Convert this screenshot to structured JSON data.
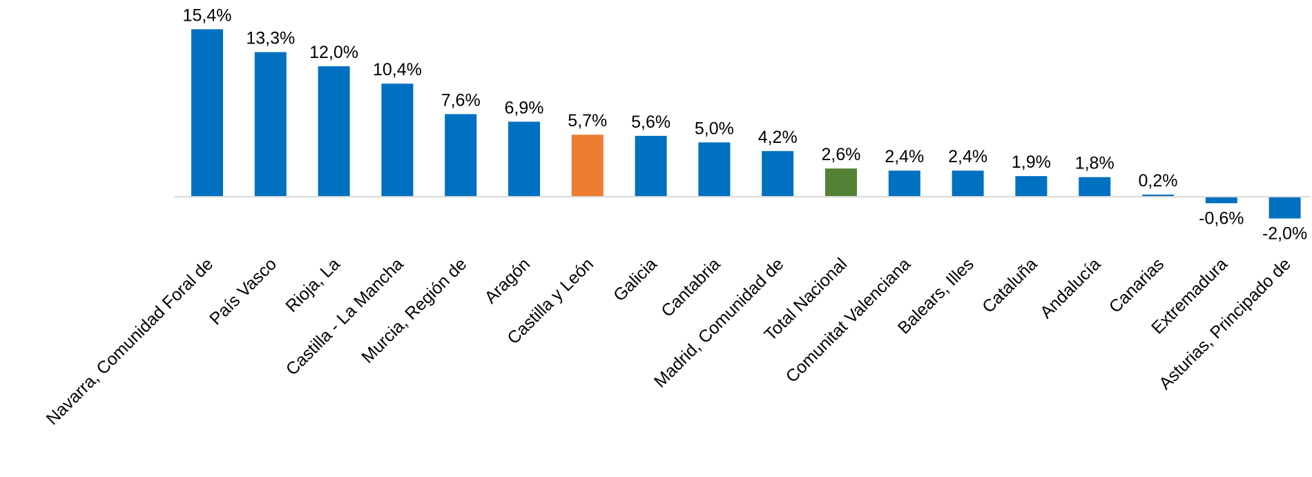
{
  "chart_data": {
    "type": "bar",
    "title": "",
    "xlabel": "",
    "ylabel": "",
    "grid": false,
    "legend": "none",
    "ylim": [
      -3,
      16
    ],
    "categories": [
      "Navarra, Comunidad Foral de",
      "País Vasco",
      "Rioja, La",
      "Castilla - La Mancha",
      "Murcia, Región de",
      "Aragón",
      "Castilla y León",
      "Galicia",
      "Cantabria",
      "Madrid, Comunidad de",
      "Total Nacional",
      "Comunitat Valenciana",
      "Balears, Illes",
      "Cataluña",
      "Andalucía",
      "Canarias",
      "Extremadura",
      "Asturias, Principado de"
    ],
    "values": [
      15.4,
      13.3,
      12.0,
      10.4,
      7.6,
      6.9,
      5.7,
      5.6,
      5.0,
      4.2,
      2.6,
      2.4,
      2.4,
      1.9,
      1.8,
      0.2,
      -0.6,
      -2.0
    ],
    "data_labels": [
      "15,4%",
      "13,3%",
      "12,0%",
      "10,4%",
      "7,6%",
      "6,9%",
      "5,7%",
      "5,6%",
      "5,0%",
      "4,2%",
      "2,6%",
      "2,4%",
      "2,4%",
      "1,9%",
      "1,8%",
      "0,2%",
      "-0,6%",
      "-2,0%"
    ],
    "colors": {
      "default": "#0070C0",
      "Castilla y León": "#ED7D31",
      "Total Nacional": "#548235",
      "axis": "#D9D9D9"
    }
  }
}
